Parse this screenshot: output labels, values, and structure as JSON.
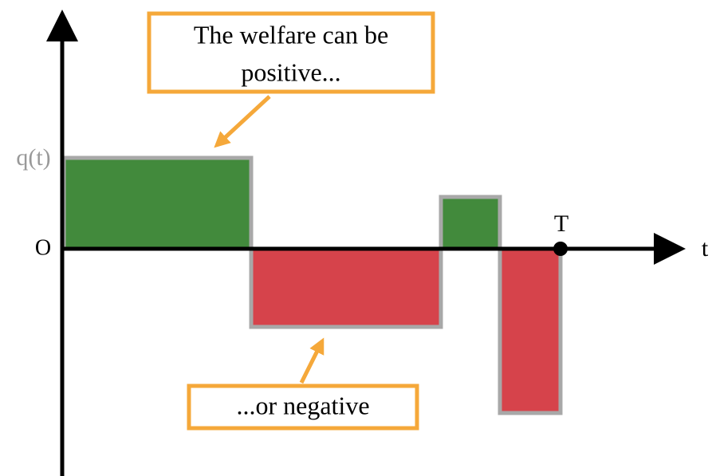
{
  "axes": {
    "y_label": "q(t)",
    "origin_label": "O",
    "x_label": "t",
    "end_label": "T"
  },
  "callouts": [
    {
      "lines": [
        "The welfare can be",
        "positive..."
      ]
    },
    {
      "lines": [
        "...or negative"
      ]
    }
  ]
}
